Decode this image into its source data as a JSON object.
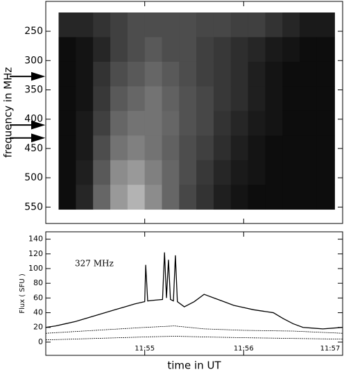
{
  "chart_data": [
    {
      "type": "heatmap",
      "y_label": "frequency in MHz",
      "x_edges": [
        714.13,
        714.304,
        714.478,
        714.652,
        714.826,
        715.0,
        715.174,
        715.348,
        715.522,
        715.696,
        715.87,
        716.044,
        716.218,
        716.392,
        716.566,
        716.74,
        716.92
      ],
      "y_edges": [
        218,
        260,
        302,
        344,
        386,
        428,
        470,
        512,
        554
      ],
      "z": [
        [
          15,
          15,
          20,
          25,
          30,
          30,
          30,
          30,
          28,
          28,
          25,
          25,
          20,
          15,
          10,
          10
        ],
        [
          5,
          8,
          15,
          25,
          30,
          35,
          30,
          30,
          25,
          22,
          18,
          15,
          10,
          8,
          5,
          5
        ],
        [
          5,
          8,
          20,
          30,
          35,
          40,
          35,
          30,
          25,
          22,
          18,
          12,
          8,
          5,
          5,
          5
        ],
        [
          5,
          8,
          22,
          35,
          40,
          45,
          38,
          32,
          28,
          22,
          18,
          12,
          8,
          5,
          5,
          5
        ],
        [
          5,
          10,
          25,
          40,
          45,
          45,
          40,
          32,
          28,
          20,
          15,
          10,
          8,
          5,
          5,
          5
        ],
        [
          5,
          10,
          30,
          45,
          50,
          45,
          38,
          30,
          25,
          18,
          12,
          8,
          5,
          5,
          5,
          5
        ],
        [
          5,
          12,
          35,
          55,
          60,
          50,
          40,
          30,
          22,
          15,
          10,
          8,
          5,
          5,
          5,
          5
        ],
        [
          5,
          15,
          40,
          60,
          70,
          55,
          40,
          28,
          20,
          12,
          8,
          5,
          5,
          5,
          5,
          5
        ]
      ],
      "xlim": [
        714.0,
        717.0
      ],
      "ylim": [
        199,
        578
      ],
      "y_inverted": true,
      "yticks": [
        250,
        300,
        350,
        400,
        450,
        500,
        550
      ],
      "arrows": [
        327,
        410,
        432
      ]
    },
    {
      "type": "line",
      "y_label": "Flux ( SFU )",
      "x_label": "time in UT",
      "annotation": "327 MHz",
      "xlim": [
        714.0,
        717.0
      ],
      "ylim": [
        -18,
        150
      ],
      "xticks": [
        {
          "value": 715,
          "label": "11:55"
        },
        {
          "value": 716,
          "label": "11:56"
        },
        {
          "value": 717,
          "label": "11:57"
        }
      ],
      "yticks": [
        0,
        20,
        40,
        60,
        80,
        100,
        120,
        140
      ],
      "series": [
        {
          "color": "#000000",
          "x": [
            714.0,
            714.1,
            714.2,
            714.3,
            714.4,
            714.5,
            714.6,
            714.7,
            714.8,
            714.9,
            715.0,
            715.01,
            715.03,
            715.1,
            715.18,
            715.2,
            715.22,
            715.24,
            715.26,
            715.29,
            715.31,
            715.33,
            715.4,
            715.5,
            715.6,
            715.7,
            715.8,
            715.9,
            716.0,
            716.1,
            716.2,
            716.3,
            716.4,
            716.5,
            716.6,
            716.7,
            716.8,
            716.9,
            717.0
          ],
          "values": [
            20,
            22,
            25,
            28,
            32,
            36,
            40,
            44,
            48,
            52,
            55,
            105,
            56,
            57,
            58,
            122,
            60,
            112,
            58,
            56,
            118,
            55,
            48,
            55,
            65,
            60,
            55,
            50,
            47,
            44,
            42,
            40,
            32,
            25,
            20,
            19,
            18,
            19,
            20
          ]
        },
        {
          "color": "#000000",
          "x": [
            714.0,
            714.5,
            715.0,
            715.3,
            715.6,
            716.0,
            716.5,
            717.0
          ],
          "values": [
            12,
            16,
            20,
            22,
            18,
            16,
            15,
            12
          ]
        },
        {
          "color": "#000000",
          "x": [
            714.0,
            714.5,
            715.0,
            715.3,
            715.6,
            716.0,
            716.5,
            717.0
          ],
          "values": [
            3,
            5,
            7,
            8,
            7,
            6,
            5,
            4
          ]
        }
      ]
    }
  ]
}
